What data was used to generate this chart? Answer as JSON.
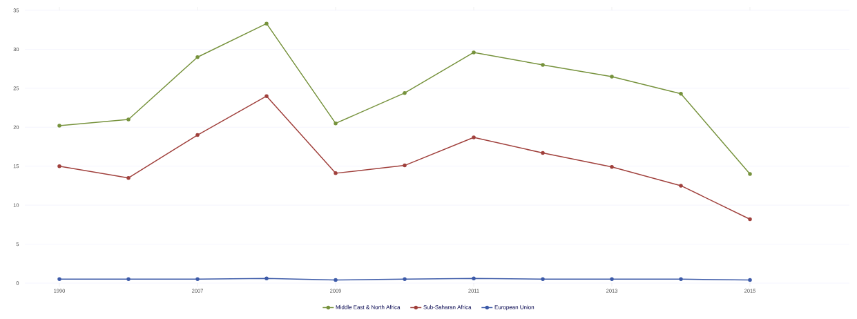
{
  "chart_data": {
    "type": "line",
    "categories": [
      "1990",
      null,
      "2007",
      null,
      "2009",
      null,
      "2011",
      null,
      "2013",
      null,
      "2015"
    ],
    "series": [
      {
        "name": "Middle East & North Africa",
        "color": "#76923c",
        "values": [
          20.2,
          21.0,
          29.0,
          33.3,
          20.5,
          24.4,
          29.6,
          28.0,
          26.5,
          24.3,
          14.0
        ]
      },
      {
        "name": "Sub-Saharan Africa",
        "color": "#a0403c",
        "values": [
          15.0,
          13.5,
          19.0,
          24.0,
          14.1,
          15.1,
          18.7,
          16.7,
          14.9,
          12.5,
          8.2
        ]
      },
      {
        "name": "European Union",
        "color": "#3c5aa8",
        "values": [
          0.5,
          0.5,
          0.5,
          0.6,
          0.4,
          0.5,
          0.6,
          0.5,
          0.5,
          0.5,
          0.4
        ]
      }
    ],
    "ylim": [
      0,
      35
    ],
    "yticks": [
      0,
      5,
      10,
      15,
      20,
      25,
      30,
      35
    ],
    "grid": "y",
    "legend": "bottom",
    "marker": "circle",
    "line_style": "solid"
  }
}
